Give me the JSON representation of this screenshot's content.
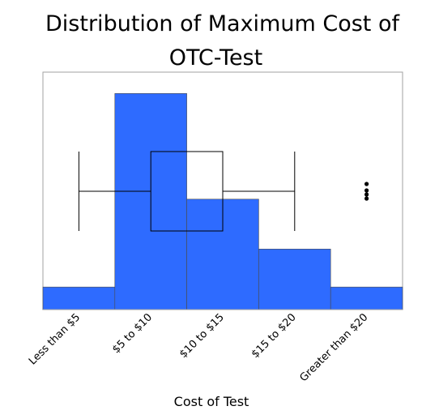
{
  "chart_data": {
    "type": "bar",
    "title_lines": [
      "Distribution of Maximum Cost of",
      "OTC-Test"
    ],
    "xlabel": "Cost of Test",
    "ylabel": "",
    "categories": [
      "Less than $5",
      "$5 to $10",
      "$10 to $15",
      "$15 to $20",
      "Greater than $20"
    ],
    "values": [
      0.095,
      0.91,
      0.465,
      0.255,
      0.095
    ],
    "ylim": [
      0,
      1
    ],
    "grid": false,
    "bar_color": "#2e6bff",
    "bar_edge_color": "#4a4a4a",
    "boxplot": {
      "whisker_low": 0.5,
      "q1": 1.5,
      "median": 1.5,
      "q3": 2.5,
      "whisker_high": 3.5,
      "outlier_x": 4.5
    }
  }
}
